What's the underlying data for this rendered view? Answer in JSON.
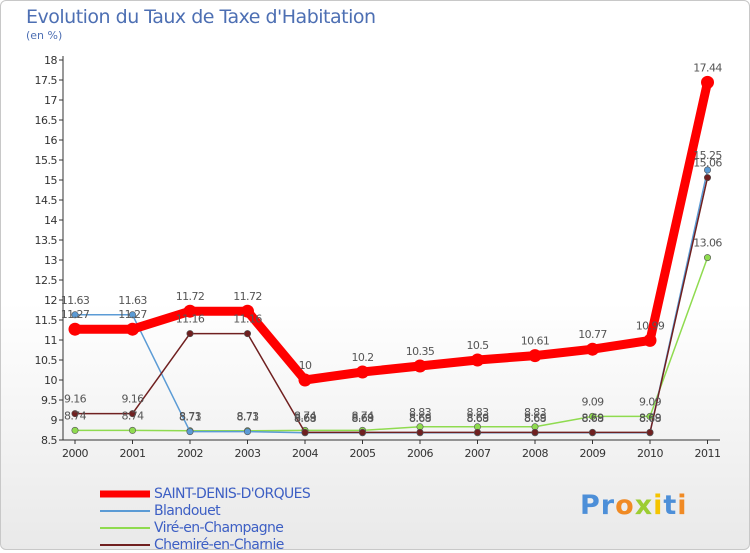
{
  "chart_data": {
    "type": "line",
    "title": "Evolution du Taux de Taxe d'Habitation",
    "ylabel": "(en %)",
    "xlabel": "",
    "categories": [
      "2000",
      "2001",
      "2002",
      "2003",
      "2004",
      "2005",
      "2006",
      "2007",
      "2008",
      "2009",
      "2010",
      "2011"
    ],
    "ylim": [
      8.5,
      18
    ],
    "yticks": [
      "8.5",
      "9",
      "9.5",
      "10",
      "10.5",
      "11",
      "11.5",
      "12",
      "12.5",
      "13",
      "13.5",
      "14",
      "14.5",
      "15",
      "15.5",
      "16",
      "16.5",
      "17",
      "17.5",
      "18"
    ],
    "grid": false,
    "legend_position": "bottom-left",
    "series": [
      {
        "name": "SAINT-DENIS-D'ORQUES",
        "color": "#ff0000",
        "values": [
          11.27,
          11.27,
          11.72,
          11.72,
          10,
          10.2,
          10.35,
          10.5,
          10.61,
          10.77,
          10.99,
          17.44
        ],
        "labels": [
          "11.27",
          "11.27",
          "11.72",
          "11.72",
          "10",
          "10.2",
          "10.35",
          "10.5",
          "10.61",
          "10.77",
          "10.99",
          "17.44"
        ]
      },
      {
        "name": "Blandouet",
        "color": "#5b9bd5",
        "values": [
          11.63,
          11.63,
          8.71,
          8.71,
          8.68,
          8.68,
          8.68,
          8.68,
          8.68,
          8.68,
          8.68,
          15.25
        ],
        "labels": [
          "11.63",
          "11.63",
          "8.71",
          "8.71",
          "8.68",
          "8.68",
          "8.68",
          "8.68",
          "8.68",
          "8.68",
          "8.68",
          "15.25"
        ]
      },
      {
        "name": "Viré-en-Champagne",
        "color": "#8fdb4f",
        "values": [
          8.74,
          8.74,
          8.73,
          8.73,
          8.74,
          8.74,
          8.83,
          8.83,
          8.83,
          9.09,
          9.09,
          13.06
        ],
        "labels": [
          "8.74",
          "8.74",
          "8.73",
          "8.73",
          "8.74",
          "8.74",
          "8.83",
          "8.83",
          "8.83",
          "9.09",
          "9.09",
          "13.06"
        ]
      },
      {
        "name": "Chemiré-en-Charnie",
        "color": "#702020",
        "values": [
          9.16,
          9.16,
          11.16,
          11.16,
          8.69,
          8.69,
          8.69,
          8.69,
          8.69,
          8.69,
          8.69,
          15.06
        ],
        "labels": [
          "9.16",
          "9.16",
          "11.16",
          "11.16",
          "8.69",
          "8.69",
          "8.69",
          "8.69",
          "8.69",
          "8.69",
          "8.69",
          "15.06"
        ]
      }
    ]
  },
  "brand": {
    "letters": [
      "P",
      "r",
      "o",
      "x",
      "i",
      "t",
      "i"
    ],
    "colors": [
      "#4d8fd8",
      "#4d8fd8",
      "#f08a24",
      "#9ccd32",
      "#f5c400",
      "#4d8fd8",
      "#f08a24"
    ]
  }
}
